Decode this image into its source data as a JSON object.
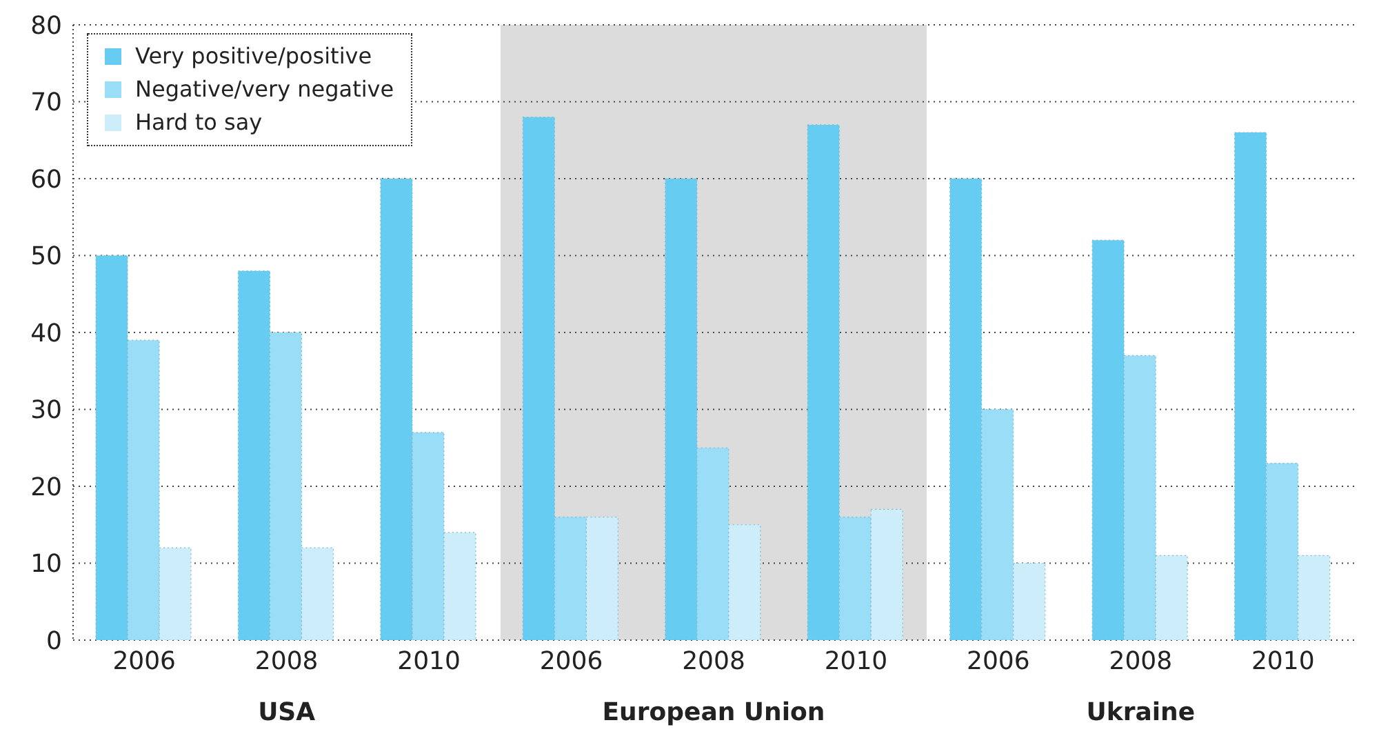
{
  "chart_data": {
    "type": "bar",
    "categories": [
      "2006",
      "2008",
      "2010",
      "2006",
      "2008",
      "2010",
      "2006",
      "2008",
      "2010"
    ],
    "series": [
      {
        "name": "Very positive/positive",
        "color": "#66ccf2",
        "values": [
          50,
          48,
          60,
          68,
          60,
          67,
          60,
          52,
          66
        ]
      },
      {
        "name": "Negative/very negative",
        "color": "#99ddf6",
        "values": [
          39,
          40,
          27,
          16,
          25,
          16,
          30,
          37,
          23
        ]
      },
      {
        "name": "Hard to say",
        "color": "#ccedf9",
        "values": [
          12,
          12,
          14,
          16,
          15,
          17,
          10,
          11,
          11
        ]
      }
    ],
    "ylim": [
      0,
      80
    ],
    "yticks": [
      0,
      10,
      20,
      30,
      40,
      50,
      60,
      70,
      80
    ],
    "grid": "y",
    "legend": "top left",
    "annotations": [
      "USA",
      "European Union",
      "Ukraine"
    ]
  }
}
